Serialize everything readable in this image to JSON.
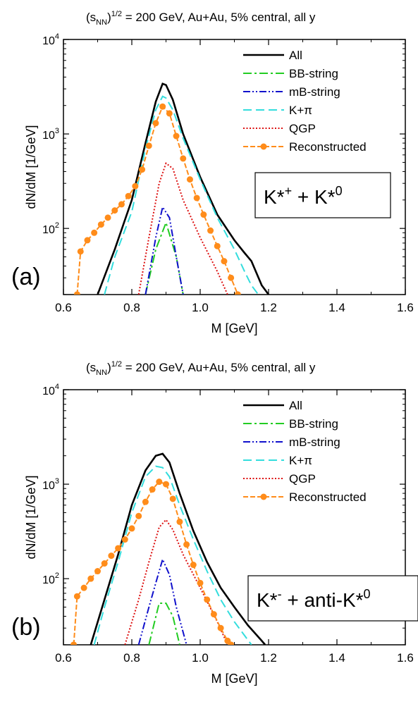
{
  "chart_data": [
    {
      "type": "line",
      "panel_label": "(a)",
      "title_prefix": "(s",
      "title_sub": "NN",
      "title_sup": "1/2",
      "title_rest": " = 200 GeV, Au+Au, 5% central, all y",
      "xlabel": "M [GeV]",
      "ylabel": "dN/dM [1/GeV]",
      "xlim": [
        0.6,
        1.6
      ],
      "ylim_log10": [
        1.3,
        4.0
      ],
      "xticks": [
        "0.6",
        "0.8",
        "1.0",
        "1.2",
        "1.4",
        "1.6"
      ],
      "ytick_base": "10",
      "ytick_exps": [
        "2",
        "3",
        "4"
      ],
      "legend_position": "top-right",
      "annotation": {
        "main": "K*",
        "sup1": "+",
        "mid": " + K*",
        "sup2": "0"
      },
      "series": [
        {
          "name": "All",
          "color": "#000000",
          "dash": "solid",
          "x": [
            0.7,
            0.75,
            0.8,
            0.84,
            0.87,
            0.89,
            0.9,
            0.92,
            0.95,
            1.0,
            1.05,
            1.1,
            1.13,
            1.15,
            1.18,
            1.2
          ],
          "y": [
            20,
            60,
            200,
            800,
            2200,
            3400,
            3300,
            2300,
            1000,
            350,
            140,
            75,
            55,
            45,
            25,
            20
          ]
        },
        {
          "name": "BB-string",
          "color": "#22cc22",
          "dash": "dashdot",
          "x": [
            0.84,
            0.87,
            0.9,
            0.93,
            0.95
          ],
          "y": [
            20,
            60,
            115,
            50,
            20
          ]
        },
        {
          "name": "mB-string",
          "color": "#1010cc",
          "dash": "dashdotdot",
          "x": [
            0.84,
            0.87,
            0.89,
            0.91,
            0.93,
            0.95
          ],
          "y": [
            20,
            80,
            168,
            130,
            50,
            20
          ]
        },
        {
          "name": "K+π",
          "color": "#33dddd",
          "dash": "dash",
          "x": [
            0.72,
            0.75,
            0.8,
            0.84,
            0.87,
            0.89,
            0.9,
            0.92,
            0.95,
            1.0,
            1.05,
            1.1,
            1.13,
            1.15,
            1.17
          ],
          "y": [
            20,
            50,
            150,
            700,
            1800,
            2500,
            2400,
            1800,
            900,
            330,
            130,
            60,
            35,
            25,
            20
          ]
        },
        {
          "name": "QGP",
          "color": "#dd1111",
          "dash": "dot",
          "x": [
            0.82,
            0.85,
            0.88,
            0.9,
            0.92,
            0.95,
            1.0,
            1.05,
            1.08
          ],
          "y": [
            20,
            80,
            300,
            490,
            430,
            200,
            80,
            35,
            20
          ]
        },
        {
          "name": "Reconstructed",
          "color": "#ff8c1a",
          "dash": "dashmark",
          "x": [
            0.64,
            0.65,
            0.67,
            0.69,
            0.71,
            0.73,
            0.75,
            0.77,
            0.79,
            0.81,
            0.83,
            0.85,
            0.87,
            0.89,
            0.91,
            0.93,
            0.95,
            0.97,
            0.99,
            1.01,
            1.03,
            1.05,
            1.07,
            1.09,
            1.11
          ],
          "y": [
            20,
            57,
            75,
            90,
            110,
            130,
            155,
            180,
            220,
            280,
            420,
            750,
            1300,
            1950,
            1650,
            950,
            550,
            330,
            210,
            140,
            95,
            65,
            45,
            30,
            20
          ]
        }
      ]
    },
    {
      "type": "line",
      "panel_label": "(b)",
      "title_prefix": "(s",
      "title_sub": "NN",
      "title_sup": "1/2",
      "title_rest": " = 200 GeV, Au+Au, 5% central, all y",
      "xlabel": "M [GeV]",
      "ylabel": "dN/dM [1/GeV]",
      "xlim": [
        0.6,
        1.6
      ],
      "ylim_log10": [
        1.3,
        4.0
      ],
      "xticks": [
        "0.6",
        "0.8",
        "1.0",
        "1.2",
        "1.4",
        "1.6"
      ],
      "ytick_base": "10",
      "ytick_exps": [
        "2",
        "3",
        "4"
      ],
      "legend_position": "top-right",
      "annotation": {
        "main": "K*",
        "sup1": "-",
        "mid": " + anti-K*",
        "sup2": "0"
      },
      "series": [
        {
          "name": "All",
          "color": "#000000",
          "dash": "solid",
          "x": [
            0.68,
            0.72,
            0.76,
            0.8,
            0.84,
            0.87,
            0.89,
            0.91,
            0.94,
            0.98,
            1.02,
            1.06,
            1.1,
            1.14,
            1.18,
            1.19
          ],
          "y": [
            20,
            60,
            180,
            600,
            1400,
            2000,
            2100,
            1700,
            800,
            320,
            150,
            80,
            50,
            32,
            22,
            20
          ]
        },
        {
          "name": "BB-string",
          "color": "#22cc22",
          "dash": "dashdot",
          "x": [
            0.85,
            0.88,
            0.9,
            0.92,
            0.94
          ],
          "y": [
            20,
            55,
            55,
            40,
            20
          ]
        },
        {
          "name": "mB-string",
          "color": "#1010cc",
          "dash": "dashdotdot",
          "x": [
            0.82,
            0.85,
            0.87,
            0.89,
            0.91,
            0.93,
            0.96
          ],
          "y": [
            20,
            50,
            90,
            160,
            110,
            50,
            20
          ]
        },
        {
          "name": "K+π",
          "color": "#33dddd",
          "dash": "dash",
          "x": [
            0.69,
            0.72,
            0.76,
            0.8,
            0.84,
            0.87,
            0.89,
            0.91,
            0.94,
            0.98,
            1.02,
            1.06,
            1.1,
            1.13,
            1.15
          ],
          "y": [
            20,
            50,
            150,
            500,
            1200,
            1550,
            1500,
            1200,
            600,
            260,
            120,
            60,
            35,
            25,
            20
          ]
        },
        {
          "name": "QGP",
          "color": "#dd1111",
          "dash": "dot",
          "x": [
            0.78,
            0.82,
            0.85,
            0.88,
            0.9,
            0.92,
            0.95,
            1.0,
            1.05,
            1.08
          ],
          "y": [
            20,
            60,
            150,
            350,
            420,
            330,
            180,
            80,
            35,
            20
          ]
        },
        {
          "name": "Reconstructed",
          "color": "#ff8c1a",
          "dash": "dashmark",
          "x": [
            0.63,
            0.64,
            0.66,
            0.68,
            0.7,
            0.72,
            0.74,
            0.76,
            0.78,
            0.8,
            0.82,
            0.84,
            0.86,
            0.88,
            0.9,
            0.92,
            0.94,
            0.96,
            0.98,
            1.0,
            1.02,
            1.04,
            1.06,
            1.08,
            1.09
          ],
          "y": [
            20,
            65,
            80,
            100,
            120,
            145,
            175,
            210,
            260,
            340,
            460,
            650,
            880,
            1060,
            1000,
            700,
            400,
            230,
            140,
            90,
            60,
            42,
            30,
            22,
            20
          ]
        }
      ]
    }
  ]
}
